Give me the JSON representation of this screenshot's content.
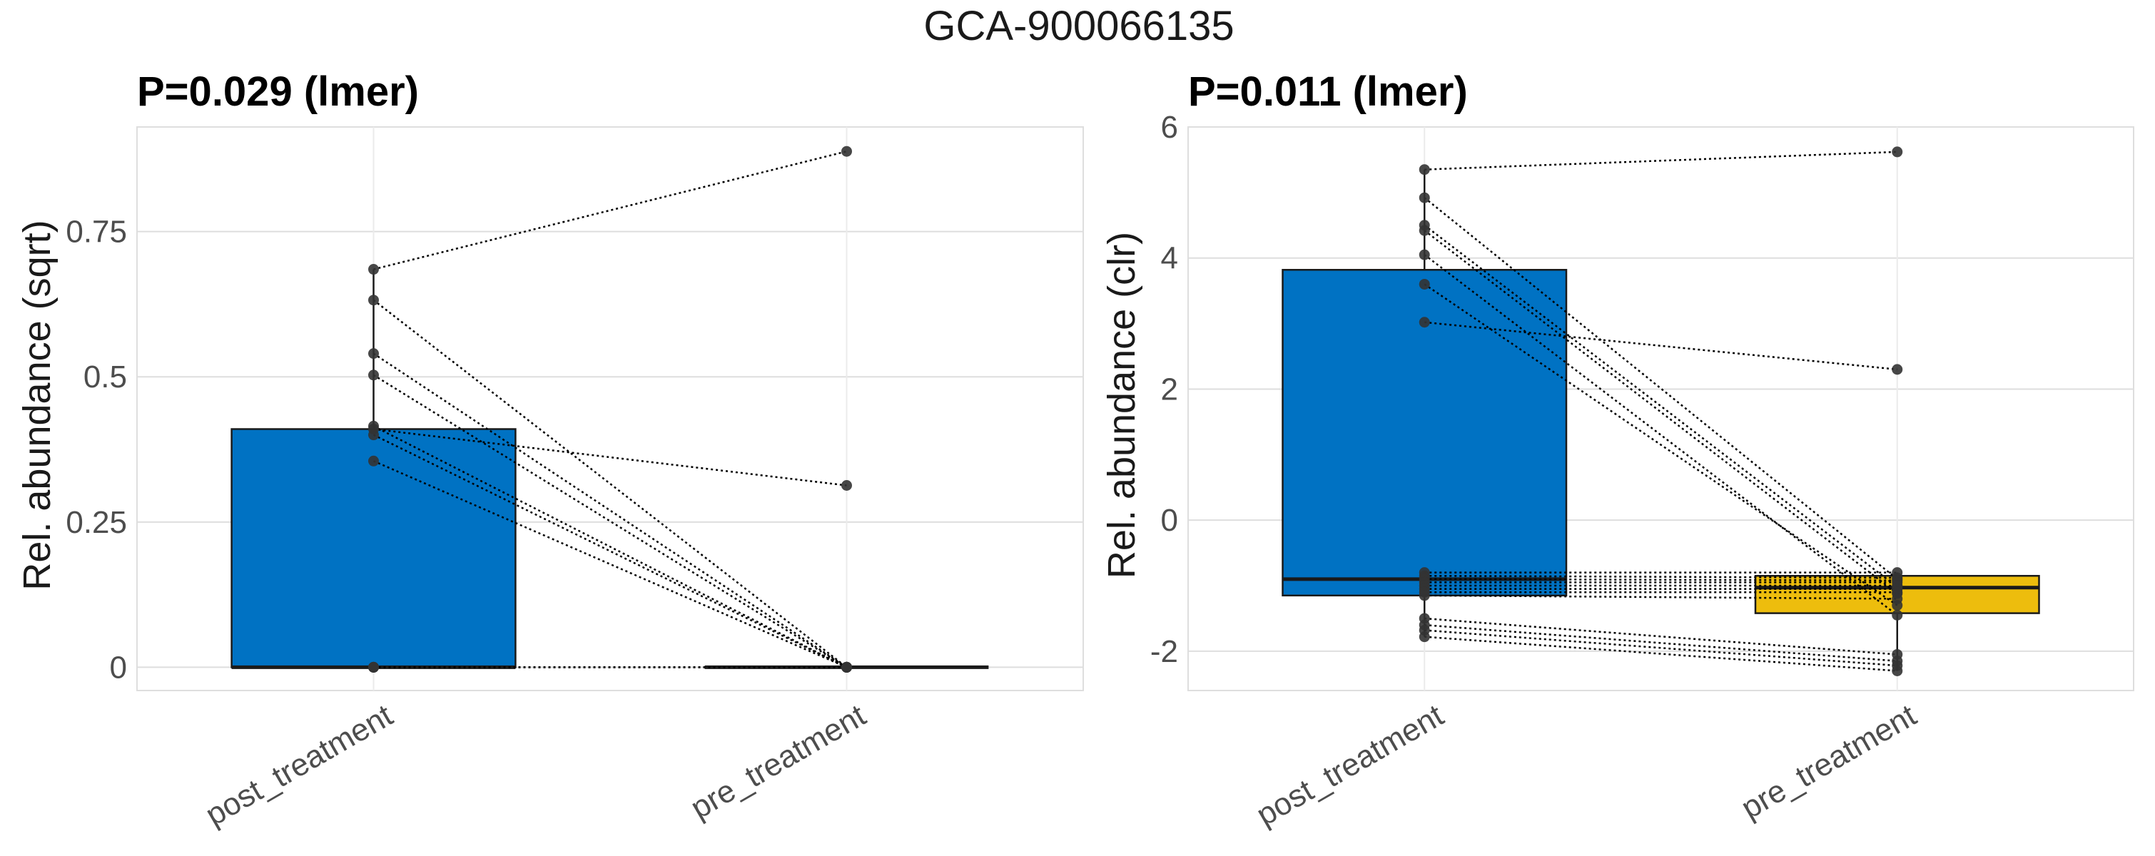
{
  "figure_title": "GCA-900066135",
  "colors": {
    "post_treatment": "#0072C3",
    "pre_treatment": "#EDBD0D",
    "point": "#333333",
    "grid": "#DEDEDE"
  },
  "chart_data": [
    {
      "type": "box",
      "title": "P=0.029 (lmer)",
      "ylabel": "Rel. abundance (sqrt)",
      "xlabel": "",
      "categories": [
        "post_treatment",
        "pre_treatment"
      ],
      "ylim": [
        -0.04,
        0.93
      ],
      "yticks": [
        0,
        0.25,
        0.5,
        0.75
      ],
      "ytick_labels": [
        "0",
        "0.25",
        "0.5",
        "0.75"
      ],
      "boxes": [
        {
          "group": "post_treatment",
          "q1": 0,
          "median": 0,
          "q3": 0.41,
          "whisker_low": 0,
          "whisker_high": 0.685
        },
        {
          "group": "pre_treatment",
          "q1": 0,
          "median": 0,
          "q3": 0,
          "whisker_low": 0,
          "whisker_high": 0
        }
      ],
      "pairs": [
        [
          0.685,
          0.888
        ],
        [
          0.632,
          0.0
        ],
        [
          0.54,
          0.0
        ],
        [
          0.503,
          0.0
        ],
        [
          0.415,
          0.0
        ],
        [
          0.41,
          0.313
        ],
        [
          0.4,
          0.0
        ],
        [
          0.355,
          0.0
        ],
        [
          0.0,
          0.0
        ],
        [
          0.0,
          0.0
        ],
        [
          0.0,
          0.0
        ],
        [
          0.0,
          0.0
        ]
      ]
    },
    {
      "type": "box",
      "title": "P=0.011 (lmer)",
      "ylabel": "Rel. abundance (clr)",
      "xlabel": "",
      "categories": [
        "post_treatment",
        "pre_treatment"
      ],
      "ylim": [
        -2.6,
        6.0
      ],
      "yticks": [
        -2,
        0,
        2,
        4,
        6
      ],
      "ytick_labels": [
        "-2",
        "0",
        "2",
        "4",
        "6"
      ],
      "boxes": [
        {
          "group": "post_treatment",
          "q1": -1.15,
          "median": -0.9,
          "q3": 3.82,
          "whisker_low": -1.78,
          "whisker_high": 5.35
        },
        {
          "group": "pre_treatment",
          "q1": -1.42,
          "median": -1.03,
          "q3": -0.85,
          "whisker_low": -2.3,
          "whisker_high": -0.8
        }
      ],
      "pairs": [
        [
          5.35,
          5.62
        ],
        [
          4.92,
          -0.9
        ],
        [
          4.5,
          -1.02
        ],
        [
          4.42,
          -1.12
        ],
        [
          4.05,
          -1.45
        ],
        [
          3.6,
          -1.3
        ],
        [
          3.02,
          2.3
        ],
        [
          -0.8,
          -0.8
        ],
        [
          -0.85,
          -0.88
        ],
        [
          -0.9,
          -0.92
        ],
        [
          -0.95,
          -0.95
        ],
        [
          -1.0,
          -1.0
        ],
        [
          -1.05,
          -1.05
        ],
        [
          -1.1,
          -1.1
        ],
        [
          -1.15,
          -1.2
        ],
        [
          -1.5,
          -2.05
        ],
        [
          -1.6,
          -2.15
        ],
        [
          -1.68,
          -2.22
        ],
        [
          -1.78,
          -2.3
        ]
      ]
    }
  ]
}
